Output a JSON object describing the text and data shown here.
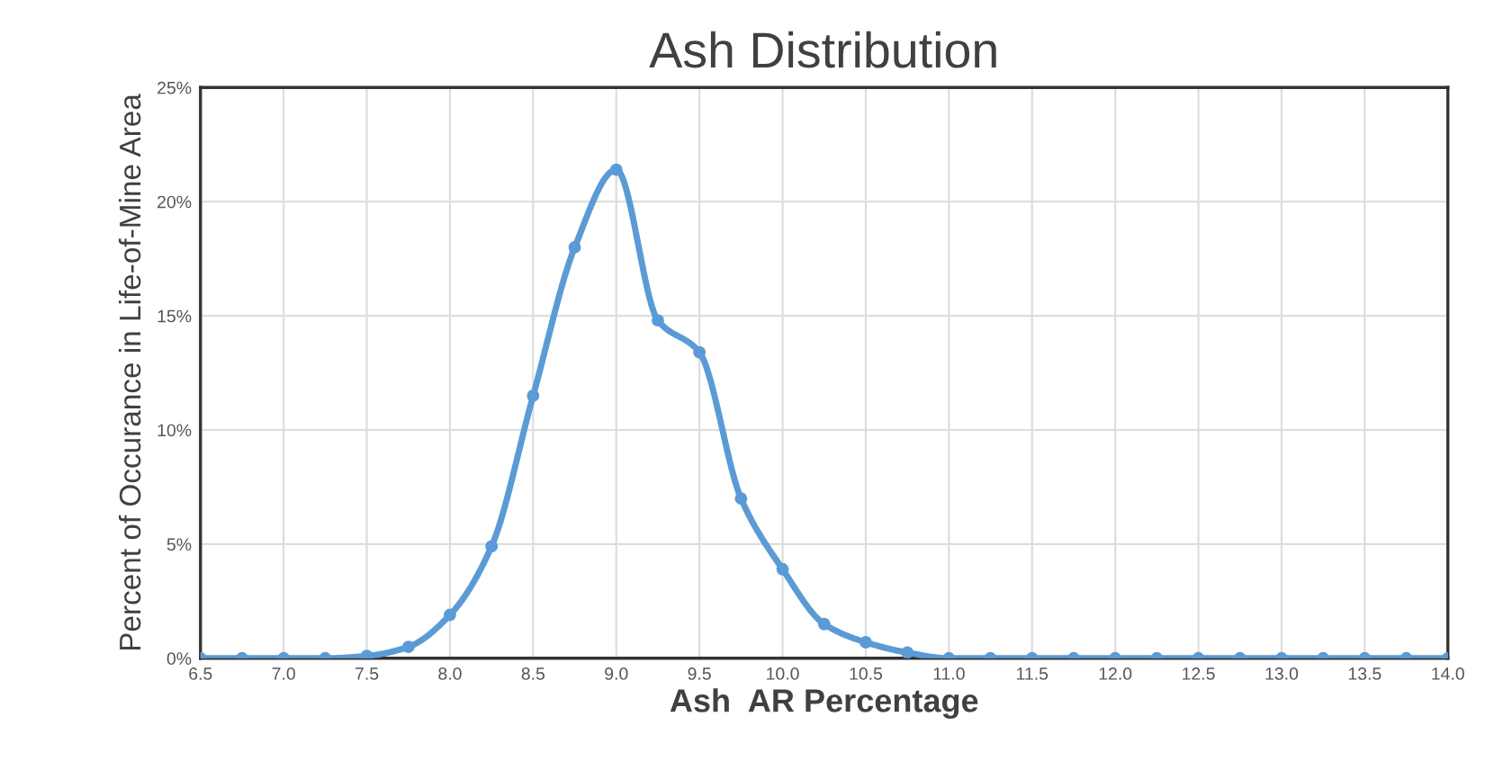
{
  "chart_data": {
    "type": "line",
    "title": "Ash Distribution",
    "xlabel": "Ash  AR Percentage",
    "ylabel": "Percent of Occurance in Life-of-Mine Area",
    "x": [
      6.5,
      6.75,
      7.0,
      7.25,
      7.5,
      7.75,
      8.0,
      8.25,
      8.5,
      8.75,
      9.0,
      9.25,
      9.5,
      9.75,
      10.0,
      10.25,
      10.5,
      10.75,
      11.0,
      11.25,
      11.5,
      11.75,
      12.0,
      12.25,
      12.5,
      12.75,
      13.0,
      13.25,
      13.5,
      13.75,
      14.0
    ],
    "series": [
      {
        "color": "#5b9bd5",
        "values": [
          0,
          0,
          0,
          0,
          0.1,
          0.5,
          1.9,
          4.9,
          11.5,
          18.0,
          21.4,
          14.8,
          13.4,
          7.0,
          3.9,
          1.5,
          0.7,
          0.25,
          0,
          0,
          0,
          0,
          0,
          0,
          0,
          0,
          0,
          0,
          0,
          0,
          0
        ]
      }
    ],
    "xlim": [
      6.5,
      14.0
    ],
    "xticks": [
      {
        "value": 6.5,
        "label": "6.5"
      },
      {
        "value": 7.0,
        "label": "7.0"
      },
      {
        "value": 7.5,
        "label": "7.5"
      },
      {
        "value": 8.0,
        "label": "8.0"
      },
      {
        "value": 8.5,
        "label": "8.5"
      },
      {
        "value": 9.0,
        "label": "9.0"
      },
      {
        "value": 9.5,
        "label": "9.5"
      },
      {
        "value": 10.0,
        "label": "10.0"
      },
      {
        "value": 10.5,
        "label": "10.5"
      },
      {
        "value": 11.0,
        "label": "11.0"
      },
      {
        "value": 11.5,
        "label": "11.5"
      },
      {
        "value": 12.0,
        "label": "12.0"
      },
      {
        "value": 12.5,
        "label": "12.5"
      },
      {
        "value": 13.0,
        "label": "13.0"
      },
      {
        "value": 13.5,
        "label": "13.5"
      },
      {
        "value": 14.0,
        "label": "14.0"
      }
    ],
    "ylim": [
      0,
      25
    ],
    "yticks": [
      {
        "value": 0,
        "label": "0%"
      },
      {
        "value": 5,
        "label": "5%"
      },
      {
        "value": 10,
        "label": "10%"
      },
      {
        "value": 15,
        "label": "15%"
      },
      {
        "value": 20,
        "label": "20%"
      },
      {
        "value": 25,
        "label": "25%"
      }
    ],
    "grid": true,
    "marker": "circle",
    "line_style": "solid"
  }
}
